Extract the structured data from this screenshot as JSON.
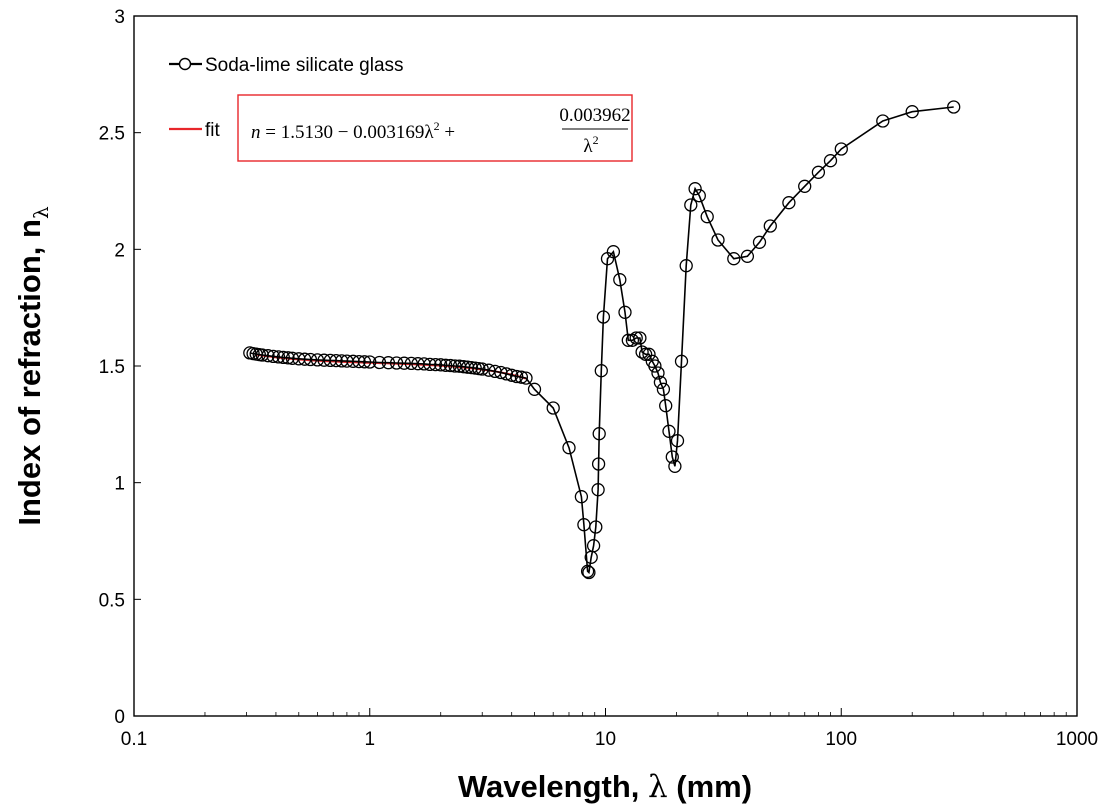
{
  "chart_data": {
    "type": "scatter",
    "xlabel_main": "Wavelength, ",
    "xlabel_symbol": "λ",
    "xlabel_unit": " (mm)",
    "ylabel_main": "Index of refraction, n",
    "ylabel_sub": "λ",
    "xscale": "log",
    "xlim": [
      0.1,
      1000
    ],
    "ylim": [
      0,
      3
    ],
    "xticks": [
      "0.1",
      "1",
      "10",
      "100",
      "1000"
    ],
    "yticks": [
      "0",
      "0.5",
      "1",
      "1.5",
      "2",
      "2.5",
      "3"
    ],
    "grid": false,
    "legend_position": "top-left",
    "series": [
      {
        "name": "Soda-lime silicate glass",
        "color": "#000000",
        "marker": "open-circle",
        "points": [
          [
            0.31,
            1.556
          ],
          [
            0.32,
            1.553
          ],
          [
            0.33,
            1.551
          ],
          [
            0.34,
            1.549
          ],
          [
            0.35,
            1.547
          ],
          [
            0.37,
            1.544
          ],
          [
            0.39,
            1.541
          ],
          [
            0.41,
            1.539
          ],
          [
            0.43,
            1.537
          ],
          [
            0.45,
            1.535
          ],
          [
            0.47,
            1.533
          ],
          [
            0.5,
            1.531
          ],
          [
            0.53,
            1.529
          ],
          [
            0.56,
            1.528
          ],
          [
            0.6,
            1.526
          ],
          [
            0.64,
            1.525
          ],
          [
            0.68,
            1.524
          ],
          [
            0.72,
            1.523
          ],
          [
            0.76,
            1.522
          ],
          [
            0.8,
            1.521
          ],
          [
            0.85,
            1.52
          ],
          [
            0.9,
            1.519
          ],
          [
            0.95,
            1.518
          ],
          [
            1.0,
            1.517
          ],
          [
            1.1,
            1.515
          ],
          [
            1.2,
            1.514
          ],
          [
            1.3,
            1.513
          ],
          [
            1.4,
            1.512
          ],
          [
            1.5,
            1.511
          ],
          [
            1.6,
            1.51
          ],
          [
            1.7,
            1.509
          ],
          [
            1.8,
            1.507
          ],
          [
            1.9,
            1.506
          ],
          [
            2.0,
            1.505
          ],
          [
            2.1,
            1.503
          ],
          [
            2.2,
            1.502
          ],
          [
            2.3,
            1.5
          ],
          [
            2.4,
            1.499
          ],
          [
            2.5,
            1.497
          ],
          [
            2.6,
            1.495
          ],
          [
            2.7,
            1.493
          ],
          [
            2.8,
            1.491
          ],
          [
            2.9,
            1.489
          ],
          [
            3.0,
            1.487
          ],
          [
            3.2,
            1.482
          ],
          [
            3.4,
            1.477
          ],
          [
            3.6,
            1.472
          ],
          [
            3.8,
            1.466
          ],
          [
            4.0,
            1.46
          ],
          [
            4.2,
            1.455
          ],
          [
            4.4,
            1.452
          ],
          [
            4.6,
            1.448
          ],
          [
            5.0,
            1.4
          ],
          [
            6.0,
            1.32
          ],
          [
            7.0,
            1.15
          ],
          [
            7.9,
            0.94
          ],
          [
            8.1,
            0.82
          ],
          [
            8.4,
            0.62
          ],
          [
            8.5,
            0.615
          ],
          [
            8.7,
            0.68
          ],
          [
            8.9,
            0.73
          ],
          [
            9.1,
            0.81
          ],
          [
            9.3,
            0.97
          ],
          [
            9.35,
            1.08
          ],
          [
            9.4,
            1.21
          ],
          [
            9.6,
            1.48
          ],
          [
            9.8,
            1.71
          ],
          [
            10.2,
            1.96
          ],
          [
            10.8,
            1.99
          ],
          [
            11.5,
            1.87
          ],
          [
            12.1,
            1.73
          ],
          [
            12.5,
            1.61
          ],
          [
            13.0,
            1.61
          ],
          [
            13.5,
            1.62
          ],
          [
            14.0,
            1.62
          ],
          [
            14.3,
            1.56
          ],
          [
            14.8,
            1.55
          ],
          [
            15.3,
            1.55
          ],
          [
            15.8,
            1.52
          ],
          [
            16.2,
            1.5
          ],
          [
            16.7,
            1.47
          ],
          [
            17.1,
            1.43
          ],
          [
            17.6,
            1.4
          ],
          [
            18.0,
            1.33
          ],
          [
            18.6,
            1.22
          ],
          [
            19.2,
            1.11
          ],
          [
            19.7,
            1.07
          ],
          [
            20.2,
            1.18
          ],
          [
            21.0,
            1.52
          ],
          [
            22.0,
            1.93
          ],
          [
            23.0,
            2.19
          ],
          [
            24.0,
            2.26
          ],
          [
            25.0,
            2.23
          ],
          [
            27.0,
            2.14
          ],
          [
            30.0,
            2.04
          ],
          [
            35.0,
            1.96
          ],
          [
            40.0,
            1.97
          ],
          [
            45.0,
            2.03
          ],
          [
            50.0,
            2.1
          ],
          [
            60.0,
            2.2
          ],
          [
            70.0,
            2.27
          ],
          [
            80.0,
            2.33
          ],
          [
            90.0,
            2.38
          ],
          [
            100.0,
            2.43
          ],
          [
            150.0,
            2.55
          ],
          [
            200.0,
            2.59
          ],
          [
            300.0,
            2.61
          ]
        ]
      },
      {
        "name": "fit",
        "color": "#e8262a",
        "marker": "none",
        "equation": {
          "a": 1.513,
          "b": 0.003169,
          "c": 0.003962,
          "x_range": [
            0.33,
            4.6
          ]
        }
      }
    ],
    "annotation": {
      "box_color": "#e8262a",
      "lhs": "n",
      "equals": " = 1.5130 − 0.003169λ",
      "sq1": "2",
      "plus": " +",
      "numerator": "0.003962",
      "denominator": "λ",
      "sq2": "2"
    }
  }
}
